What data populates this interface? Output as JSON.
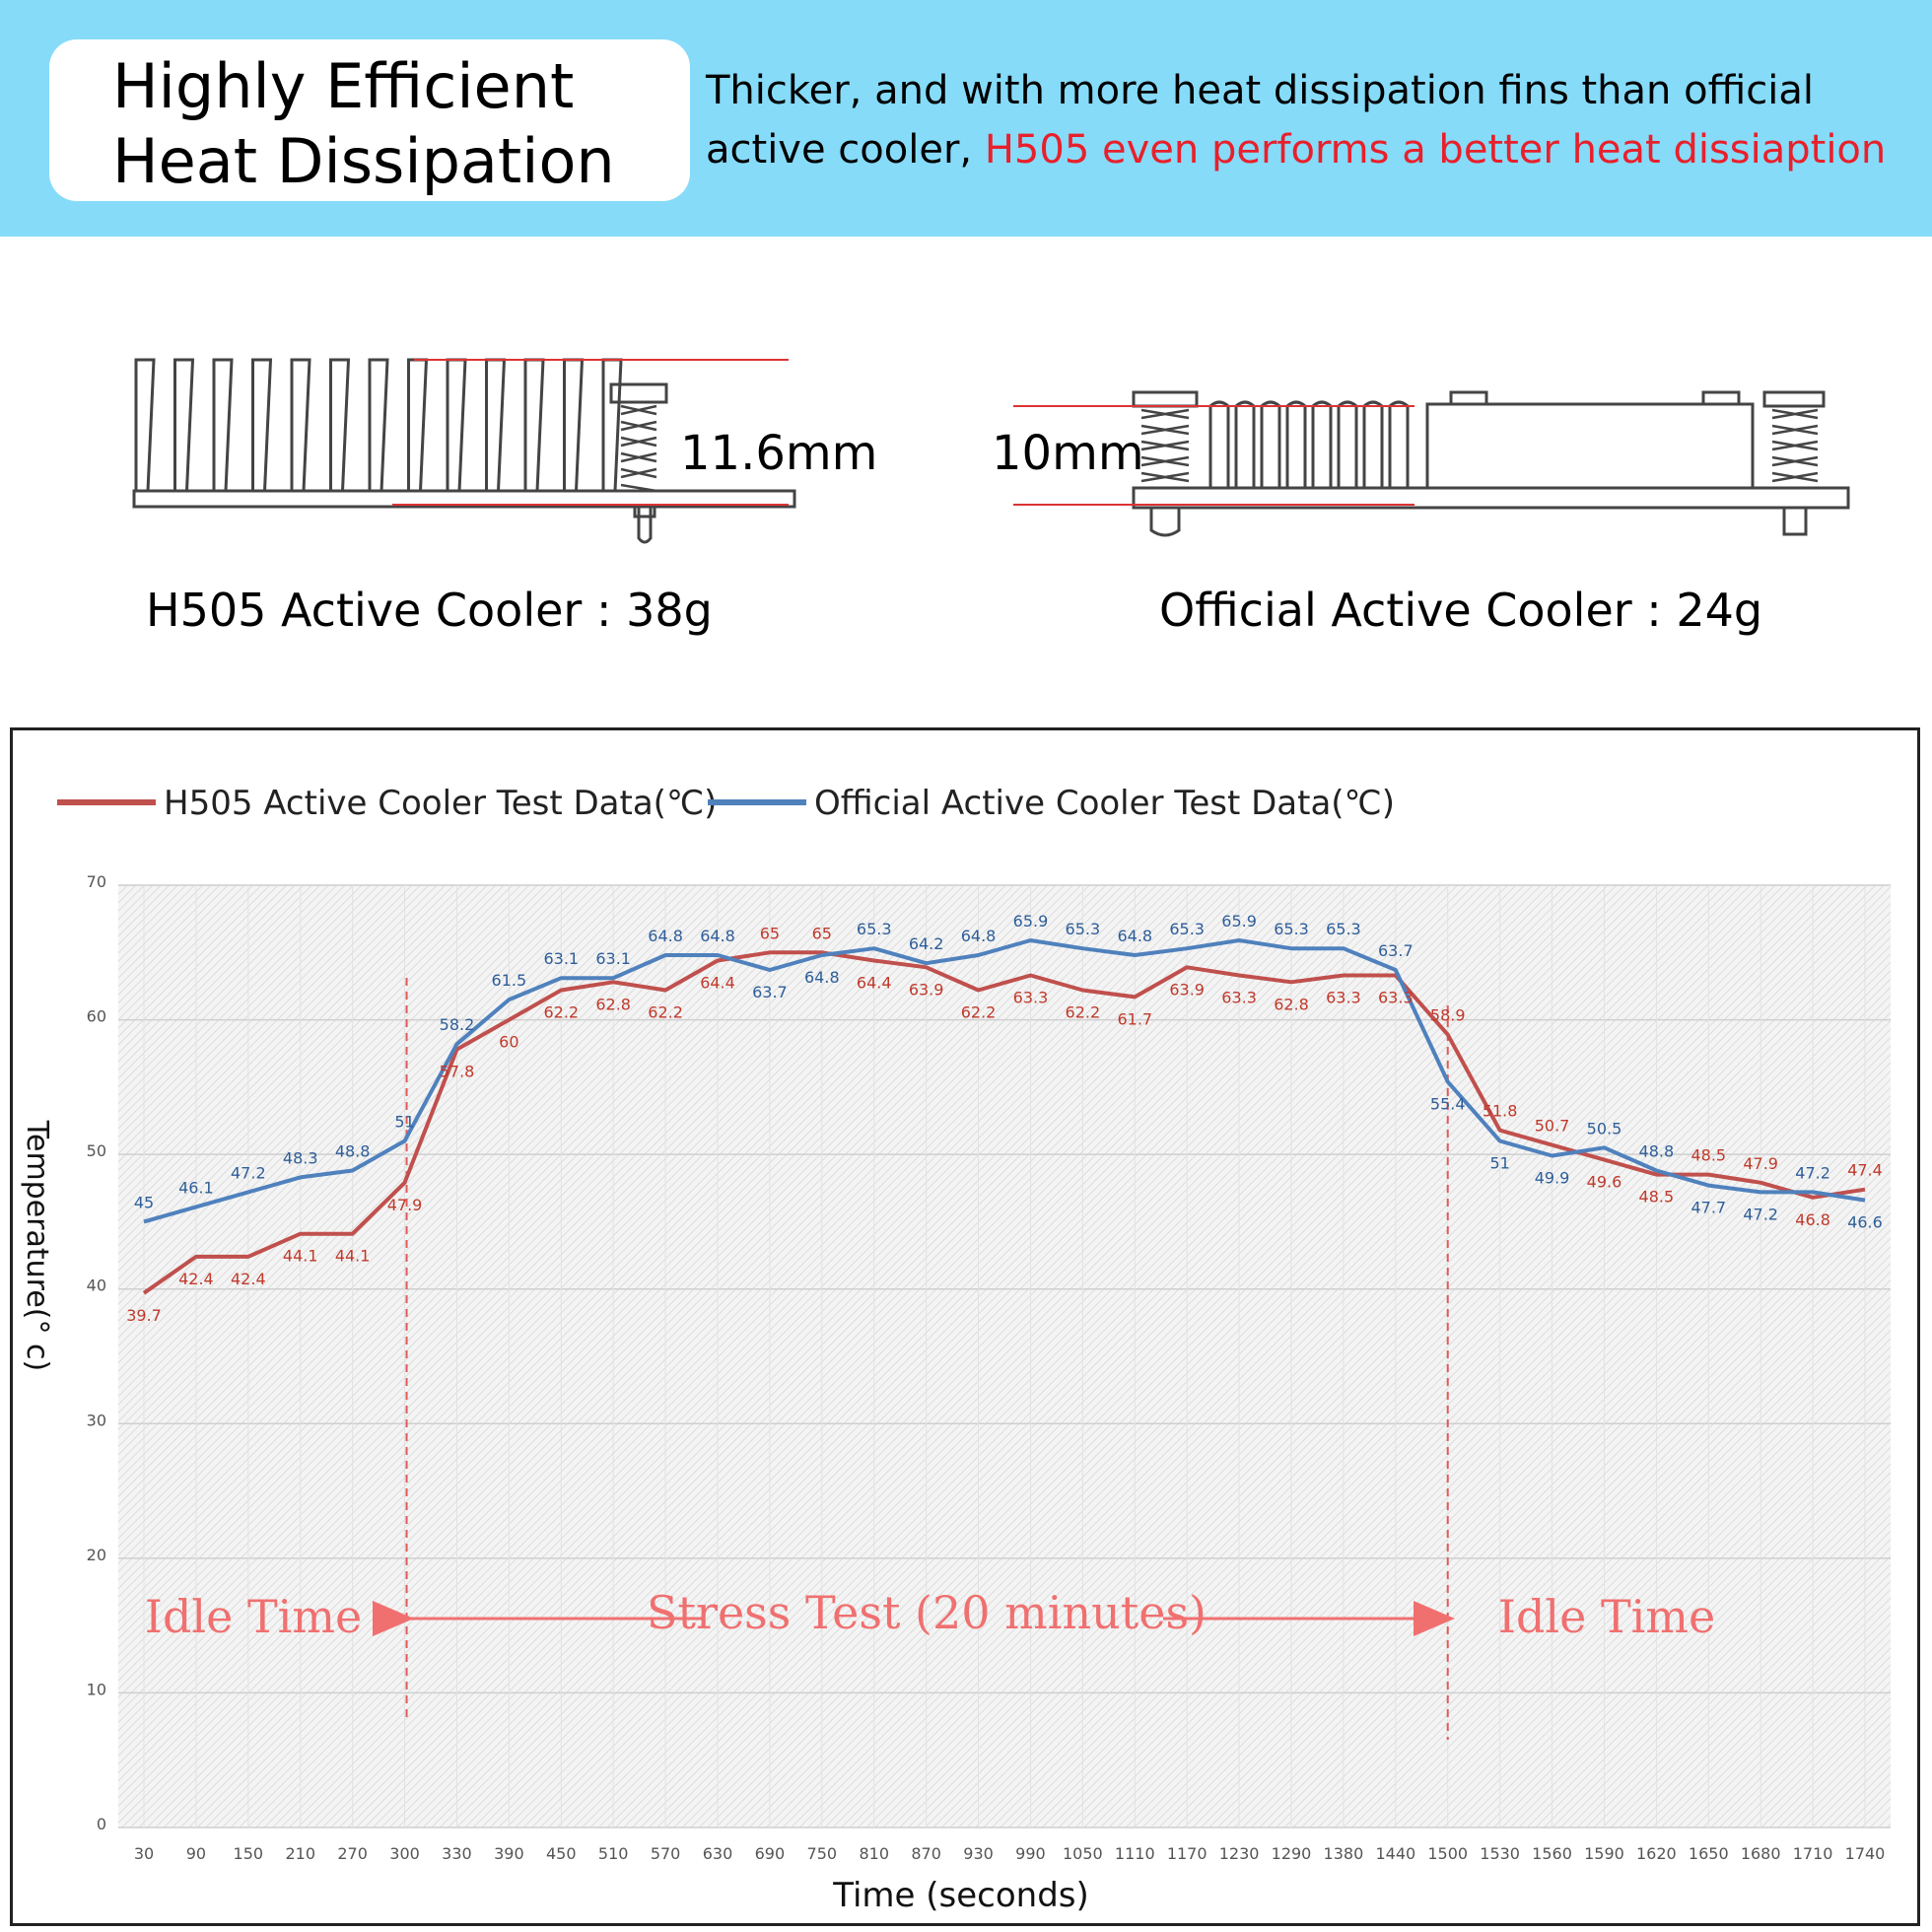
{
  "header": {
    "title_line1": "Highly Efficient",
    "title_line2": "Heat Dissipation",
    "desc_line1": "Thicker, and with more heat dissipation fins than official",
    "desc_line2_black": "active cooler, ",
    "desc_line2_red": "H505 even performs a better heat dissiaption"
  },
  "comparison": {
    "h505_thickness": "11.6mm",
    "official_thickness": "10mm",
    "h505_label": "H505 Active Cooler : 38g",
    "official_label": "Official Active Cooler : 24g"
  },
  "colors": {
    "banner": "#86dbf9",
    "accent_red": "#e8202b",
    "h505_series": "#c0504d",
    "official_series": "#4f81bd",
    "annotation": "#f07070"
  },
  "chart_data": {
    "type": "line",
    "ylabel": "Temperature(° c)",
    "xlabel": "Time (seconds)",
    "ylim": [
      0,
      70
    ],
    "yticks": [
      0,
      10,
      20,
      30,
      40,
      50,
      60,
      70
    ],
    "grid": true,
    "legend_position": "top-left",
    "categories": [
      "30",
      "90",
      "150",
      "210",
      "270",
      "300",
      "330",
      "390",
      "450",
      "510",
      "570",
      "630",
      "690",
      "750",
      "810",
      "870",
      "930",
      "990",
      "1050",
      "1110",
      "1170",
      "1230",
      "1290",
      "1380",
      "1440",
      "1500",
      "1530",
      "1560",
      "1590",
      "1620",
      "1650",
      "1680",
      "1710",
      "1740"
    ],
    "series": [
      {
        "name": "H505 Active Cooler Test Data(℃)",
        "values": [
          39.7,
          42.4,
          42.4,
          44.1,
          44.1,
          47.9,
          57.8,
          60,
          62.2,
          62.8,
          62.2,
          64.4,
          65,
          65,
          64.4,
          63.9,
          62.2,
          63.3,
          62.2,
          61.7,
          63.9,
          63.3,
          62.8,
          63.3,
          63.3,
          58.9,
          51.8,
          50.7,
          49.6,
          48.5,
          48.5,
          47.9,
          46.8,
          47.4
        ]
      },
      {
        "name": "Official Active Cooler Test Data(℃)",
        "values": [
          45,
          46.1,
          47.2,
          48.3,
          48.8,
          51,
          58.2,
          61.5,
          63.1,
          63.1,
          64.8,
          64.8,
          63.7,
          64.8,
          65.3,
          64.2,
          64.8,
          65.9,
          65.3,
          64.8,
          65.3,
          65.9,
          65.3,
          65.3,
          63.7,
          55.4,
          51,
          49.9,
          50.5,
          48.8,
          47.7,
          47.2,
          47.2,
          46.6
        ]
      }
    ],
    "annotations": {
      "idle_left": "Idle Time",
      "stress": "Stress Test (20 minutes)",
      "idle_right": "Idle Time"
    }
  }
}
